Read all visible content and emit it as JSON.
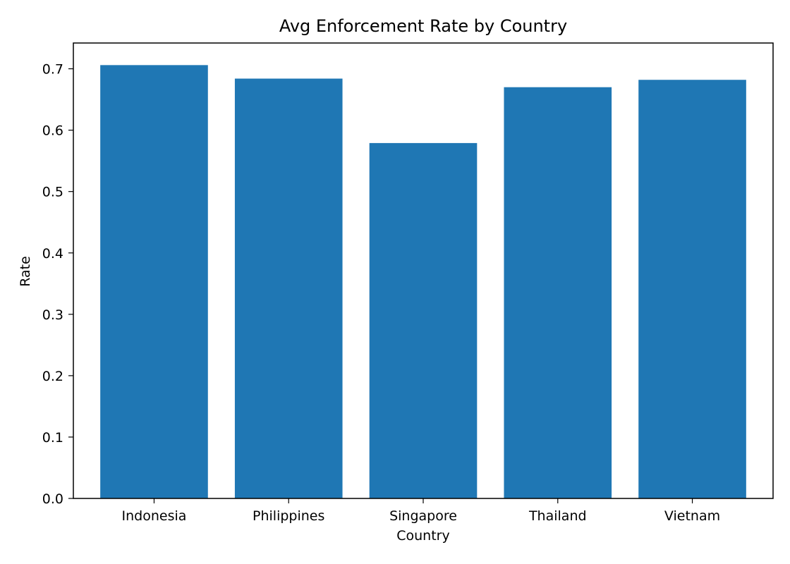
{
  "chart_data": {
    "type": "bar",
    "title": "Avg Enforcement Rate by Country",
    "xlabel": "Country",
    "ylabel": "Rate",
    "categories": [
      "Indonesia",
      "Philippines",
      "Singapore",
      "Thailand",
      "Vietnam"
    ],
    "values": [
      0.706,
      0.684,
      0.579,
      0.67,
      0.682
    ],
    "ylim": [
      0,
      0.742
    ],
    "yticks": [
      "0.0",
      "0.1",
      "0.2",
      "0.3",
      "0.4",
      "0.5",
      "0.6",
      "0.7"
    ],
    "grid": false,
    "legend": "none",
    "bar_color": "#1f77b4"
  }
}
